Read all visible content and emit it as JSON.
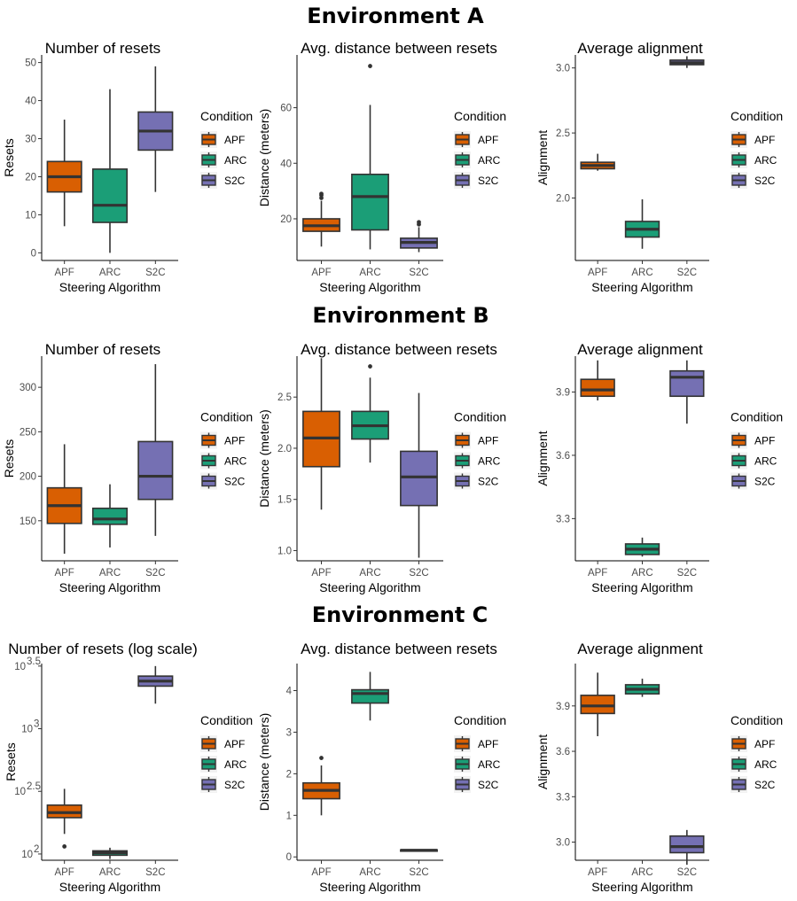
{
  "colors": {
    "APF": "#d95f02",
    "ARC": "#1b9e77",
    "S2C": "#7570b3",
    "line": "#333333"
  },
  "environments": [
    {
      "title": "Environment A"
    },
    {
      "title": "Environment B"
    },
    {
      "title": "Environment C"
    }
  ],
  "chart_data": [
    {
      "type": "boxplot",
      "env": 0,
      "col": 0,
      "title": "Number of resets",
      "xlabel": "Steering Algorithm",
      "ylabel": "Resets",
      "scale": "linear",
      "ylim": [
        -2,
        52
      ],
      "ticks": [
        {
          "v": 0,
          "label": "0"
        },
        {
          "v": 10,
          "label": "10"
        },
        {
          "v": 20,
          "label": "20"
        },
        {
          "v": 30,
          "label": "30"
        },
        {
          "v": 40,
          "label": "40"
        },
        {
          "v": 50,
          "label": "50"
        }
      ],
      "categories": [
        "APF",
        "ARC",
        "S2C"
      ],
      "boxes": [
        {
          "min": 7,
          "q1": 16,
          "median": 20,
          "q3": 24,
          "max": 35,
          "outliers": []
        },
        {
          "min": 0,
          "q1": 8,
          "median": 12.5,
          "q3": 22,
          "max": 43,
          "outliers": []
        },
        {
          "min": 16,
          "q1": 27,
          "median": 32,
          "q3": 37,
          "max": 49,
          "outliers": []
        }
      ],
      "legend": {
        "title": "Condition",
        "labels": [
          "APF",
          "ARC",
          "S2C"
        ]
      }
    },
    {
      "type": "boxplot",
      "env": 0,
      "col": 1,
      "title": "Avg. distance between resets",
      "xlabel": "Steering Algorithm",
      "ylabel": "Distance (meters)",
      "scale": "linear",
      "ylim": [
        5,
        79
      ],
      "ticks": [
        {
          "v": 20,
          "label": "20"
        },
        {
          "v": 40,
          "label": "40"
        },
        {
          "v": 60,
          "label": "60"
        }
      ],
      "categories": [
        "APF",
        "ARC",
        "S2C"
      ],
      "boxes": [
        {
          "min": 10,
          "q1": 15.5,
          "median": 17.5,
          "q3": 20,
          "max": 26.5,
          "outliers": [
            27.5,
            28.5,
            29
          ]
        },
        {
          "min": 9,
          "q1": 16,
          "median": 28,
          "q3": 36,
          "max": 61,
          "outliers": [
            75
          ]
        },
        {
          "min": 8,
          "q1": 9.5,
          "median": 11.5,
          "q3": 13,
          "max": 17,
          "outliers": [
            18,
            18.8
          ]
        }
      ],
      "legend": {
        "title": "Condition",
        "labels": [
          "APF",
          "ARC",
          "S2C"
        ]
      }
    },
    {
      "type": "boxplot",
      "env": 0,
      "col": 2,
      "title": "Average alignment",
      "xlabel": "Steering Algorithm",
      "ylabel": "Alignment",
      "scale": "linear",
      "ylim": [
        1.52,
        3.1
      ],
      "ticks": [
        {
          "v": 2.0,
          "label": "2.0"
        },
        {
          "v": 2.5,
          "label": "2.5"
        },
        {
          "v": 3.0,
          "label": "3.0"
        }
      ],
      "categories": [
        "APF",
        "ARC",
        "S2C"
      ],
      "boxes": [
        {
          "min": 2.21,
          "q1": 2.225,
          "median": 2.25,
          "q3": 2.275,
          "max": 2.34,
          "outliers": []
        },
        {
          "min": 1.61,
          "q1": 1.7,
          "median": 1.76,
          "q3": 1.82,
          "max": 1.99,
          "outliers": []
        },
        {
          "min": 3.0,
          "q1": 3.025,
          "median": 3.04,
          "q3": 3.06,
          "max": 3.09,
          "outliers": []
        }
      ],
      "legend": {
        "title": "Condition",
        "labels": [
          "APF",
          "ARC",
          "S2C"
        ]
      }
    },
    {
      "type": "boxplot",
      "env": 1,
      "col": 0,
      "title": "Number of resets",
      "xlabel": "Steering Algorithm",
      "ylabel": "Resets",
      "scale": "linear",
      "ylim": [
        105,
        335
      ],
      "ticks": [
        {
          "v": 150,
          "label": "150"
        },
        {
          "v": 200,
          "label": "200"
        },
        {
          "v": 250,
          "label": "250"
        },
        {
          "v": 300,
          "label": "300"
        }
      ],
      "categories": [
        "APF",
        "ARC",
        "S2C"
      ],
      "boxes": [
        {
          "min": 113,
          "q1": 147,
          "median": 167,
          "q3": 187,
          "max": 236,
          "outliers": []
        },
        {
          "min": 120,
          "q1": 146,
          "median": 152,
          "q3": 164,
          "max": 191,
          "outliers": []
        },
        {
          "min": 133,
          "q1": 174,
          "median": 200,
          "q3": 239,
          "max": 326,
          "outliers": []
        }
      ],
      "legend": {
        "title": "Condition",
        "labels": [
          "APF",
          "ARC",
          "S2C"
        ]
      }
    },
    {
      "type": "boxplot",
      "env": 1,
      "col": 1,
      "title": "Avg. distance between resets",
      "xlabel": "Steering Algorithm",
      "ylabel": "Distance (meters)",
      "scale": "linear",
      "ylim": [
        0.9,
        2.9
      ],
      "ticks": [
        {
          "v": 1.0,
          "label": "1.0"
        },
        {
          "v": 1.5,
          "label": "1.5"
        },
        {
          "v": 2.0,
          "label": "2.0"
        },
        {
          "v": 2.5,
          "label": "2.5"
        }
      ],
      "categories": [
        "APF",
        "ARC",
        "S2C"
      ],
      "boxes": [
        {
          "min": 1.4,
          "q1": 1.82,
          "median": 2.1,
          "q3": 2.36,
          "max": 2.88,
          "outliers": []
        },
        {
          "min": 1.86,
          "q1": 2.09,
          "median": 2.22,
          "q3": 2.36,
          "max": 2.69,
          "outliers": [
            2.8
          ]
        },
        {
          "min": 0.93,
          "q1": 1.44,
          "median": 1.72,
          "q3": 1.97,
          "max": 2.54,
          "outliers": []
        }
      ],
      "legend": {
        "title": "Condition",
        "labels": [
          "APF",
          "ARC",
          "S2C"
        ]
      }
    },
    {
      "type": "boxplot",
      "env": 1,
      "col": 2,
      "title": "Average alignment",
      "xlabel": "Steering Algorithm",
      "ylabel": "Alignment",
      "scale": "linear",
      "ylim": [
        3.1,
        4.07
      ],
      "ticks": [
        {
          "v": 3.3,
          "label": "3.3"
        },
        {
          "v": 3.6,
          "label": "3.6"
        },
        {
          "v": 3.9,
          "label": "3.9"
        }
      ],
      "categories": [
        "APF",
        "ARC",
        "S2C"
      ],
      "boxes": [
        {
          "min": 3.86,
          "q1": 3.88,
          "median": 3.91,
          "q3": 3.96,
          "max": 4.05,
          "outliers": []
        },
        {
          "min": 3.12,
          "q1": 3.13,
          "median": 3.155,
          "q3": 3.18,
          "max": 3.21,
          "outliers": []
        },
        {
          "min": 3.75,
          "q1": 3.88,
          "median": 3.97,
          "q3": 4.0,
          "max": 4.05,
          "outliers": []
        }
      ],
      "legend": {
        "title": "Condition",
        "labels": [
          "APF",
          "ARC",
          "S2C"
        ]
      }
    },
    {
      "type": "boxplot",
      "env": 2,
      "col": 0,
      "title": "Number of resets (log scale)",
      "xlabel": "Steering Algorithm",
      "ylabel": "Resets",
      "scale": "log10",
      "ylim": [
        1.95,
        3.52
      ],
      "ticks": [
        {
          "v": 2.0,
          "label": "10",
          "exp": "2"
        },
        {
          "v": 2.5,
          "label": "10",
          "exp": "2.5"
        },
        {
          "v": 3.0,
          "label": "10",
          "exp": "3"
        },
        {
          "v": 3.5,
          "label": "10",
          "exp": "3.5"
        }
      ],
      "categories": [
        "APF",
        "ARC",
        "S2C"
      ],
      "boxes": [
        {
          "min": 2.16,
          "q1": 2.29,
          "median": 2.33,
          "q3": 2.39,
          "max": 2.52,
          "outliers": [
            2.06
          ]
        },
        {
          "min": 1.96,
          "q1": 1.99,
          "median": 2.01,
          "q3": 2.025,
          "max": 2.05,
          "outliers": []
        },
        {
          "min": 3.2,
          "q1": 3.34,
          "median": 3.38,
          "q3": 3.42,
          "max": 3.5,
          "outliers": []
        }
      ],
      "legend": {
        "title": "Condition",
        "labels": [
          "APF",
          "ARC",
          "S2C"
        ]
      }
    },
    {
      "type": "boxplot",
      "env": 2,
      "col": 1,
      "title": "Avg. distance between resets",
      "xlabel": "Steering Algorithm",
      "ylabel": "Distance (meters)",
      "scale": "linear",
      "ylim": [
        -0.08,
        4.65
      ],
      "ticks": [
        {
          "v": 0,
          "label": "0"
        },
        {
          "v": 1,
          "label": "1"
        },
        {
          "v": 2,
          "label": "2"
        },
        {
          "v": 3,
          "label": "3"
        },
        {
          "v": 4,
          "label": "4"
        }
      ],
      "categories": [
        "APF",
        "ARC",
        "S2C"
      ],
      "boxes": [
        {
          "min": 1.0,
          "q1": 1.4,
          "median": 1.6,
          "q3": 1.78,
          "max": 2.2,
          "outliers": [
            2.38
          ]
        },
        {
          "min": 3.28,
          "q1": 3.7,
          "median": 3.93,
          "q3": 4.02,
          "max": 4.45,
          "outliers": []
        },
        {
          "min": 0.14,
          "q1": 0.15,
          "median": 0.16,
          "q3": 0.17,
          "max": 0.18,
          "outliers": []
        }
      ],
      "legend": {
        "title": "Condition",
        "labels": [
          "APF",
          "ARC",
          "S2C"
        ]
      }
    },
    {
      "type": "boxplot",
      "env": 2,
      "col": 2,
      "title": "Average alignment",
      "xlabel": "Steering Algorithm",
      "ylabel": "Alignment",
      "scale": "linear",
      "ylim": [
        2.88,
        4.18
      ],
      "ticks": [
        {
          "v": 3.0,
          "label": "3.0"
        },
        {
          "v": 3.3,
          "label": "3.3"
        },
        {
          "v": 3.6,
          "label": "3.6"
        },
        {
          "v": 3.9,
          "label": "3.9"
        }
      ],
      "categories": [
        "APF",
        "ARC",
        "S2C"
      ],
      "boxes": [
        {
          "min": 3.7,
          "q1": 3.85,
          "median": 3.9,
          "q3": 3.97,
          "max": 4.12,
          "outliers": []
        },
        {
          "min": 3.96,
          "q1": 3.98,
          "median": 4.01,
          "q3": 4.04,
          "max": 4.08,
          "outliers": []
        },
        {
          "min": 2.85,
          "q1": 2.93,
          "median": 2.97,
          "q3": 3.04,
          "max": 3.08,
          "outliers": []
        }
      ],
      "legend": {
        "title": "Condition",
        "labels": [
          "APF",
          "ARC",
          "S2C"
        ]
      }
    }
  ]
}
